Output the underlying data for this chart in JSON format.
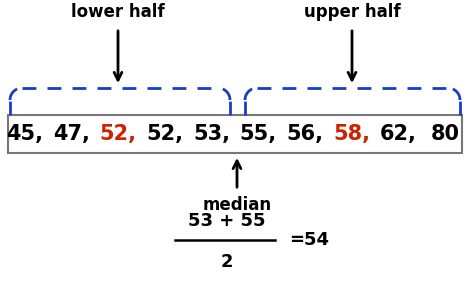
{
  "background_color": "#ffffff",
  "number_texts": [
    "45,",
    "47,",
    "52,",
    "52,",
    "53,",
    "55,",
    "56,",
    "58,",
    "62,",
    "80"
  ],
  "number_colors": [
    "#000000",
    "#000000",
    "#cc2200",
    "#000000",
    "#000000",
    "#000000",
    "#000000",
    "#cc2200",
    "#000000",
    "#000000"
  ],
  "lower_half_label": "lower half",
  "upper_half_label": "upper half",
  "median_label": "median",
  "formula_numerator": "53 + 55",
  "formula_denominator": "2",
  "formula_result": "=54",
  "arrow_color": "#000000",
  "bracket_color": "#1a3ccc",
  "box_edgecolor": "#777777",
  "font_size_numbers": 15,
  "font_size_labels": 12,
  "font_size_median": 12,
  "font_size_formula": 12
}
